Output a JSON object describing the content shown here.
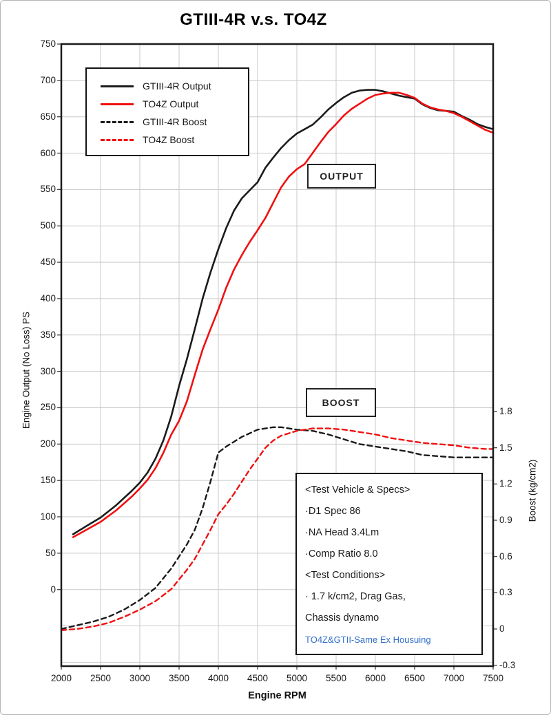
{
  "page": {
    "title": "GTIII-4R v.s. TO4Z"
  },
  "chart_data": {
    "type": "line",
    "title": "GTIII-4R v.s. TO4Z",
    "xlabel": "Engine RPM",
    "ylabel_left": "Engine Output (No Loss) PS",
    "ylabel_right": "Boost (kg/cm2)",
    "grid": true,
    "legend_position": "top-left-inside",
    "colors": {
      "gtiii": "#1a1a1a",
      "to4z": "#f01010",
      "grid": "#c9c9c9",
      "note_blue": "#2f6dc9"
    },
    "axes": {
      "x": {
        "min": 2000,
        "max": 7500,
        "ticks": [
          2000,
          2500,
          3000,
          3500,
          4000,
          4500,
          5000,
          5500,
          6000,
          6500,
          7000,
          7500
        ]
      },
      "y_left": {
        "min": -105,
        "max": 750,
        "ticks": [
          750,
          700,
          650,
          600,
          550,
          500,
          450,
          400,
          350,
          300,
          250,
          200,
          150,
          100,
          50,
          0
        ]
      },
      "y_right": {
        "min": -0.31,
        "max": 4.84,
        "ticks": [
          1.8,
          1.5,
          1.2,
          0.9,
          0.6,
          0.3,
          0,
          -0.3
        ]
      }
    },
    "series": [
      {
        "name": "GTIII-4R Output",
        "axis": "left",
        "style": "solid",
        "color": "#1a1a1a",
        "points": [
          [
            2150,
            76
          ],
          [
            2300,
            86
          ],
          [
            2500,
            99
          ],
          [
            2700,
            116
          ],
          [
            2900,
            136
          ],
          [
            3000,
            147
          ],
          [
            3100,
            161
          ],
          [
            3200,
            180
          ],
          [
            3300,
            205
          ],
          [
            3400,
            238
          ],
          [
            3500,
            280
          ],
          [
            3600,
            317
          ],
          [
            3700,
            358
          ],
          [
            3800,
            400
          ],
          [
            3900,
            436
          ],
          [
            4000,
            468
          ],
          [
            4100,
            497
          ],
          [
            4200,
            521
          ],
          [
            4300,
            538
          ],
          [
            4400,
            549
          ],
          [
            4500,
            560
          ],
          [
            4600,
            580
          ],
          [
            4700,
            594
          ],
          [
            4800,
            607
          ],
          [
            4900,
            618
          ],
          [
            5000,
            627
          ],
          [
            5100,
            633
          ],
          [
            5200,
            639
          ],
          [
            5300,
            649
          ],
          [
            5400,
            660
          ],
          [
            5500,
            669
          ],
          [
            5600,
            677
          ],
          [
            5700,
            683
          ],
          [
            5800,
            686
          ],
          [
            5900,
            687
          ],
          [
            6000,
            687
          ],
          [
            6100,
            685
          ],
          [
            6200,
            682
          ],
          [
            6300,
            679
          ],
          [
            6400,
            677
          ],
          [
            6500,
            675
          ],
          [
            6600,
            667
          ],
          [
            6700,
            662
          ],
          [
            6800,
            659
          ],
          [
            6900,
            658
          ],
          [
            7000,
            657
          ],
          [
            7100,
            651
          ],
          [
            7200,
            646
          ],
          [
            7300,
            640
          ],
          [
            7400,
            636
          ],
          [
            7500,
            633
          ]
        ]
      },
      {
        "name": "TO4Z Output",
        "axis": "left",
        "style": "solid",
        "color": "#f01010",
        "points": [
          [
            2150,
            72
          ],
          [
            2300,
            81
          ],
          [
            2500,
            93
          ],
          [
            2700,
            109
          ],
          [
            2900,
            128
          ],
          [
            3000,
            139
          ],
          [
            3100,
            151
          ],
          [
            3200,
            167
          ],
          [
            3300,
            188
          ],
          [
            3400,
            213
          ],
          [
            3500,
            232
          ],
          [
            3600,
            259
          ],
          [
            3700,
            295
          ],
          [
            3800,
            330
          ],
          [
            3900,
            358
          ],
          [
            4000,
            385
          ],
          [
            4100,
            415
          ],
          [
            4200,
            440
          ],
          [
            4300,
            460
          ],
          [
            4400,
            478
          ],
          [
            4500,
            494
          ],
          [
            4600,
            511
          ],
          [
            4700,
            532
          ],
          [
            4800,
            553
          ],
          [
            4900,
            568
          ],
          [
            5000,
            578
          ],
          [
            5100,
            585
          ],
          [
            5200,
            600
          ],
          [
            5300,
            615
          ],
          [
            5400,
            629
          ],
          [
            5500,
            640
          ],
          [
            5600,
            652
          ],
          [
            5700,
            661
          ],
          [
            5800,
            668
          ],
          [
            5900,
            675
          ],
          [
            6000,
            680
          ],
          [
            6100,
            682
          ],
          [
            6200,
            683
          ],
          [
            6300,
            683
          ],
          [
            6400,
            680
          ],
          [
            6500,
            676
          ],
          [
            6600,
            668
          ],
          [
            6700,
            663
          ],
          [
            6800,
            660
          ],
          [
            6900,
            658
          ],
          [
            7000,
            655
          ],
          [
            7100,
            650
          ],
          [
            7200,
            644
          ],
          [
            7300,
            638
          ],
          [
            7400,
            632
          ],
          [
            7500,
            628
          ]
        ]
      },
      {
        "name": "GTIII-4R Boost",
        "axis": "right",
        "style": "dashed",
        "color": "#1a1a1a",
        "points": [
          [
            2000,
            0.0
          ],
          [
            2200,
            0.03
          ],
          [
            2400,
            0.06
          ],
          [
            2600,
            0.1
          ],
          [
            2800,
            0.16
          ],
          [
            3000,
            0.24
          ],
          [
            3200,
            0.34
          ],
          [
            3400,
            0.5
          ],
          [
            3500,
            0.6
          ],
          [
            3600,
            0.7
          ],
          [
            3700,
            0.82
          ],
          [
            3800,
            1.0
          ],
          [
            3900,
            1.22
          ],
          [
            4000,
            1.46
          ],
          [
            4100,
            1.51
          ],
          [
            4200,
            1.55
          ],
          [
            4300,
            1.59
          ],
          [
            4400,
            1.62
          ],
          [
            4500,
            1.65
          ],
          [
            4600,
            1.66
          ],
          [
            4700,
            1.67
          ],
          [
            4800,
            1.67
          ],
          [
            4900,
            1.66
          ],
          [
            5000,
            1.65
          ],
          [
            5200,
            1.64
          ],
          [
            5400,
            1.61
          ],
          [
            5600,
            1.57
          ],
          [
            5800,
            1.53
          ],
          [
            6000,
            1.51
          ],
          [
            6200,
            1.49
          ],
          [
            6400,
            1.47
          ],
          [
            6600,
            1.44
          ],
          [
            6800,
            1.43
          ],
          [
            7000,
            1.42
          ],
          [
            7200,
            1.42
          ],
          [
            7400,
            1.42
          ],
          [
            7500,
            1.42
          ]
        ]
      },
      {
        "name": "TO4Z Boost",
        "axis": "right",
        "style": "dashed",
        "color": "#f01010",
        "points": [
          [
            2000,
            -0.01
          ],
          [
            2200,
            0.0
          ],
          [
            2400,
            0.02
          ],
          [
            2600,
            0.05
          ],
          [
            2800,
            0.1
          ],
          [
            3000,
            0.16
          ],
          [
            3200,
            0.23
          ],
          [
            3400,
            0.33
          ],
          [
            3500,
            0.41
          ],
          [
            3600,
            0.49
          ],
          [
            3700,
            0.58
          ],
          [
            3800,
            0.7
          ],
          [
            3900,
            0.82
          ],
          [
            4000,
            0.95
          ],
          [
            4100,
            1.03
          ],
          [
            4200,
            1.12
          ],
          [
            4300,
            1.22
          ],
          [
            4400,
            1.32
          ],
          [
            4500,
            1.41
          ],
          [
            4600,
            1.5
          ],
          [
            4700,
            1.56
          ],
          [
            4800,
            1.6
          ],
          [
            4900,
            1.62
          ],
          [
            5000,
            1.64
          ],
          [
            5200,
            1.66
          ],
          [
            5400,
            1.66
          ],
          [
            5600,
            1.65
          ],
          [
            5800,
            1.63
          ],
          [
            6000,
            1.61
          ],
          [
            6200,
            1.58
          ],
          [
            6400,
            1.56
          ],
          [
            6600,
            1.54
          ],
          [
            6800,
            1.53
          ],
          [
            7000,
            1.52
          ],
          [
            7200,
            1.5
          ],
          [
            7400,
            1.49
          ],
          [
            7500,
            1.49
          ]
        ]
      }
    ],
    "annotations": [
      {
        "text": "OUTPUT"
      },
      {
        "text": "BOOST"
      }
    ],
    "note_box": {
      "lines": [
        "<Test Vehicle & Specs>",
        "·D1 Spec 86",
        "·NA Head 3.4Lm",
        "·Comp Ratio 8.0",
        "<Test Conditions>",
        "· 1.7 k/cm2, Drag Gas,",
        " Chassis dynamo",
        "TO4Z&GTII-Same Ex Housuing"
      ],
      "last_line_color": "#2f6dc9"
    }
  }
}
